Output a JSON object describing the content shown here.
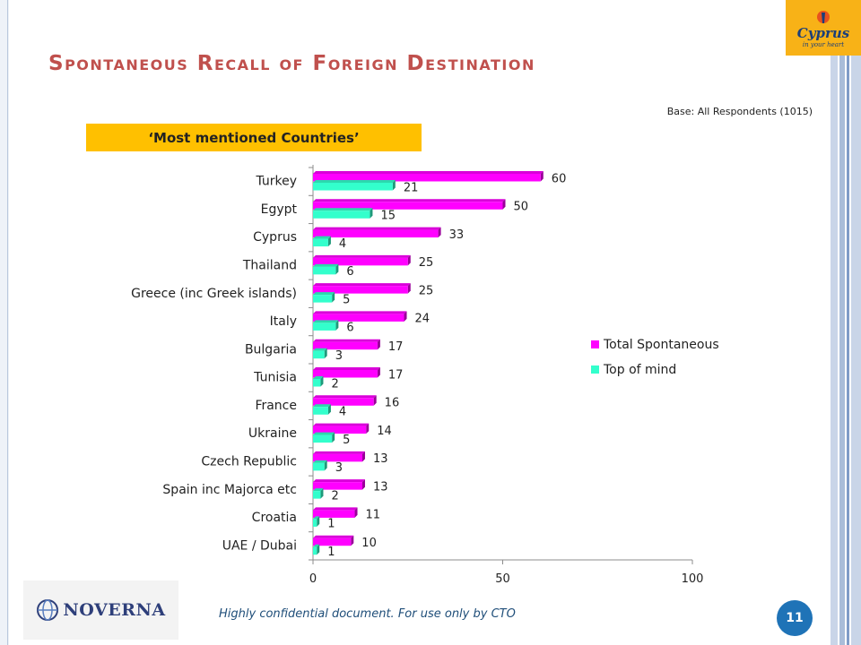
{
  "slide": {
    "title": "Spontaneous Recall of Foreign Destination",
    "base_note": "Base: All Respondents (1015)",
    "subtitle": "‘Most mentioned Countries’",
    "footer_text": "Highly confidential document. For use only by CTO",
    "page_number": "11",
    "logo_cyprus_word": "Cyprus",
    "logo_cyprus_tagline": "in your heart",
    "logo_noverna_word": "NOVERNA"
  },
  "colors": {
    "title": "#c0504d",
    "subtitle_box": "#ffc000",
    "series_total": "#ff00ff",
    "series_top": "#33ffcc",
    "page_badge": "#1f73b7"
  },
  "chart_data": {
    "type": "bar",
    "orientation": "horizontal",
    "categories": [
      "Turkey",
      "Egypt",
      "Cyprus",
      "Thailand",
      "Greece (inc Greek islands)",
      "Italy",
      "Bulgaria",
      "Tunisia",
      "France",
      "Ukraine",
      "Czech Republic",
      "Spain inc Majorca etc",
      "Croatia",
      "UAE / Dubai"
    ],
    "series": [
      {
        "name": "Total Spontaneous",
        "color": "#ff00ff",
        "values": [
          60,
          50,
          33,
          25,
          25,
          24,
          17,
          17,
          16,
          14,
          13,
          13,
          11,
          10
        ]
      },
      {
        "name": "Top of mind",
        "color": "#33ffcc",
        "values": [
          21,
          15,
          4,
          6,
          5,
          6,
          3,
          2,
          4,
          5,
          3,
          2,
          1,
          1
        ]
      }
    ],
    "xlim": [
      0,
      100
    ],
    "xticks": [
      "0",
      "50",
      "100"
    ],
    "legend_position": "right",
    "grid": false
  }
}
